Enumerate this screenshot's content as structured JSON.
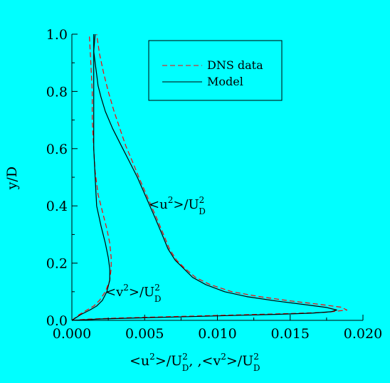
{
  "chart_data": {
    "type": "line",
    "title": "",
    "xlim": [
      0,
      0.02
    ],
    "ylim": [
      0,
      1.0
    ],
    "xticks": [
      0,
      0.005,
      0.01,
      0.015,
      0.02
    ],
    "xtick_labels": [
      "0.000",
      "0.005",
      "0.010",
      "0.015",
      "0.020"
    ],
    "yticks": [
      0,
      0.2,
      0.4,
      0.6,
      0.8,
      1.0
    ],
    "ytick_labels": [
      "0.0",
      "0.2",
      "0.4",
      "0.6",
      "0.8",
      "1.0"
    ],
    "xlabel": {
      "t1": "<u",
      "t1s": "2",
      "t2": ">/U",
      "t2s": "2",
      "t2u": "D",
      "t3": ", ,<v",
      "t3s": "2",
      "t4": ">/U",
      "t4s": "2",
      "t4u": "D"
    },
    "ylabel": "y/D",
    "grid": false,
    "legend": {
      "placement": "top-right",
      "entries": [
        {
          "label": "DNS data",
          "style": "dashed"
        },
        {
          "label": "Model",
          "style": "solid"
        }
      ]
    },
    "annotations": [
      {
        "id": "u2",
        "t1": "<u",
        "t1s": "2",
        "t2": ">/U",
        "t2s": "2",
        "t2u": "D"
      },
      {
        "id": "v2",
        "t1": "<v",
        "t1s": "2",
        "t2": ">/U",
        "t2s": "2",
        "t2u": "D"
      }
    ],
    "colors": {
      "background": "#00ffff",
      "dns": "#ff0000",
      "model": "#000000"
    },
    "series": [
      {
        "style": "dashed",
        "color": "#ff0000",
        "x": [
          0.0,
          0.001,
          0.003,
          0.006,
          0.009,
          0.012,
          0.015,
          0.0175,
          0.0189,
          0.0185,
          0.017,
          0.015,
          0.013,
          0.011,
          0.0095,
          0.0085,
          0.0078,
          0.0072,
          0.0067,
          0.0063,
          0.0058,
          0.0052,
          0.0046,
          0.0042,
          0.0037,
          0.0033,
          0.0029,
          0.0025,
          0.0022,
          0.0019,
          0.0017
        ],
        "y": [
          0.0,
          0.004,
          0.008,
          0.012,
          0.016,
          0.02,
          0.024,
          0.028,
          0.036,
          0.046,
          0.056,
          0.068,
          0.082,
          0.1,
          0.125,
          0.15,
          0.18,
          0.21,
          0.25,
          0.3,
          0.36,
          0.43,
          0.5,
          0.55,
          0.61,
          0.67,
          0.73,
          0.8,
          0.86,
          0.93,
          1.0
        ]
      },
      {
        "style": "dashed",
        "color": "#ff0000",
        "x": [
          0.0,
          0.0005,
          0.001,
          0.0015,
          0.0019,
          0.0023,
          0.0026,
          0.0027,
          0.0027,
          0.0026,
          0.0024,
          0.0021,
          0.0018,
          0.0016,
          0.0015,
          0.0014,
          0.0014,
          0.0013,
          0.0012
        ],
        "y": [
          0.0,
          0.02,
          0.035,
          0.05,
          0.07,
          0.1,
          0.14,
          0.18,
          0.22,
          0.27,
          0.32,
          0.38,
          0.44,
          0.52,
          0.6,
          0.7,
          0.8,
          0.9,
          1.0
        ]
      },
      {
        "style": "solid",
        "color": "#000000",
        "x": [
          0.0,
          0.002,
          0.005,
          0.008,
          0.011,
          0.014,
          0.0165,
          0.0178,
          0.0182,
          0.0175,
          0.016,
          0.014,
          0.012,
          0.0105,
          0.0092,
          0.0083,
          0.0077,
          0.0071,
          0.0066,
          0.0062,
          0.0057,
          0.0051,
          0.0045,
          0.004,
          0.0034,
          0.0028,
          0.0023,
          0.002,
          0.0018,
          0.0017,
          0.0016,
          0.0015,
          0.0016
        ],
        "y": [
          0.0,
          0.005,
          0.009,
          0.013,
          0.017,
          0.021,
          0.025,
          0.03,
          0.036,
          0.045,
          0.055,
          0.068,
          0.083,
          0.1,
          0.125,
          0.15,
          0.18,
          0.21,
          0.25,
          0.3,
          0.36,
          0.43,
          0.5,
          0.55,
          0.61,
          0.67,
          0.73,
          0.78,
          0.82,
          0.86,
          0.9,
          0.94,
          1.0
        ]
      },
      {
        "style": "solid",
        "color": "#000000",
        "x": [
          0.0,
          0.0006,
          0.0012,
          0.0017,
          0.0021,
          0.0024,
          0.0026,
          0.0026,
          0.0025,
          0.0023,
          0.002,
          0.0017,
          0.0016,
          0.0015,
          0.0015,
          0.0015,
          0.0015,
          0.0015
        ],
        "y": [
          0.0,
          0.02,
          0.035,
          0.05,
          0.07,
          0.1,
          0.14,
          0.18,
          0.22,
          0.27,
          0.33,
          0.4,
          0.5,
          0.6,
          0.7,
          0.8,
          0.9,
          1.0
        ]
      }
    ]
  }
}
